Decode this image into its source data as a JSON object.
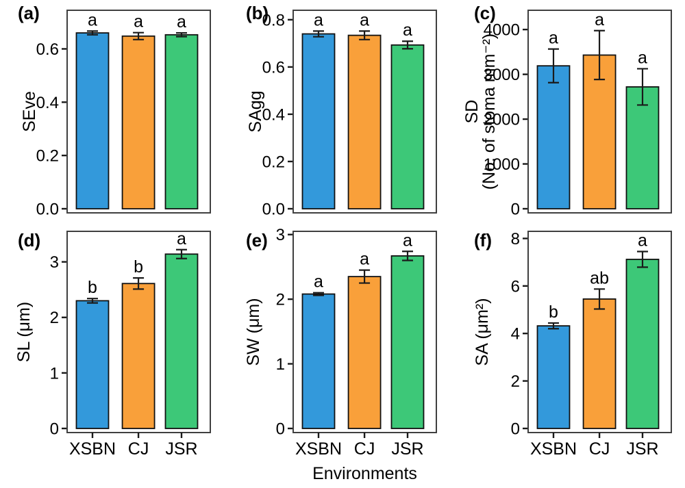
{
  "figure": {
    "background": "#ffffff"
  },
  "palette": {
    "bar_colors": [
      "#3399DB",
      "#F9A03A",
      "#3DC878"
    ],
    "bar_stroke": "#111111",
    "frame": "#3F3F3F",
    "tick": "#1A1A1A",
    "text": "#000000"
  },
  "categories": [
    "XSBN",
    "CJ",
    "JSR"
  ],
  "x_axis_label": "Environments",
  "chart_data": [
    {
      "type": "bar",
      "panel_label": "(a)",
      "ylabel_lines": [
        "SEve"
      ],
      "categories": [
        "XSBN",
        "CJ",
        "JSR"
      ],
      "values": [
        0.66,
        0.648,
        0.653
      ],
      "errors": [
        0.007,
        0.013,
        0.007
      ],
      "sig_letters": [
        "a",
        "a",
        "a"
      ],
      "yticks": [
        0,
        0.2,
        0.4,
        0.6
      ],
      "ytick_labels": [
        "0.0",
        "0.2",
        "0.4",
        "0.6"
      ],
      "ylim": [
        0,
        0.745
      ],
      "show_x_tick_labels": false,
      "grid": false,
      "legend": "none"
    },
    {
      "type": "bar",
      "panel_label": "(b)",
      "ylabel_lines": [
        "SAgg"
      ],
      "categories": [
        "XSBN",
        "CJ",
        "JSR"
      ],
      "values": [
        0.74,
        0.734,
        0.693
      ],
      "errors": [
        0.012,
        0.018,
        0.016
      ],
      "sig_letters": [
        "a",
        "a",
        "a"
      ],
      "yticks": [
        0,
        0.2,
        0.4,
        0.6,
        0.8
      ],
      "ytick_labels": [
        "0.0",
        "0.2",
        "0.4",
        "0.6",
        "0.8"
      ],
      "ylim": [
        0,
        0.84
      ],
      "show_x_tick_labels": false,
      "grid": false,
      "legend": "none"
    },
    {
      "type": "bar",
      "panel_label": "(c)",
      "ylabel_lines": [
        "SD",
        "(No. of stoma mm⁻²)"
      ],
      "categories": [
        "XSBN",
        "CJ",
        "JSR"
      ],
      "values": [
        3190,
        3430,
        2720
      ],
      "errors": [
        375,
        545,
        405
      ],
      "sig_letters": [
        "a",
        "a",
        "a"
      ],
      "yticks": [
        0,
        1000,
        2000,
        3000,
        4000
      ],
      "ytick_labels": [
        "0",
        "1000",
        "2000",
        "3000",
        "4000"
      ],
      "ylim": [
        0,
        4430
      ],
      "show_x_tick_labels": false,
      "grid": false,
      "legend": "none"
    },
    {
      "type": "bar",
      "panel_label": "(d)",
      "ylabel_lines": [
        "SL (μm)"
      ],
      "categories": [
        "XSBN",
        "CJ",
        "JSR"
      ],
      "values": [
        2.3,
        2.61,
        3.14
      ],
      "errors": [
        0.04,
        0.1,
        0.08
      ],
      "sig_letters": [
        "b",
        "b",
        "a"
      ],
      "yticks": [
        0,
        1,
        2,
        3
      ],
      "ytick_labels": [
        "0",
        "1",
        "2",
        "3"
      ],
      "ylim": [
        0,
        3.55
      ],
      "show_x_tick_labels": true,
      "grid": false,
      "legend": "none"
    },
    {
      "type": "bar",
      "panel_label": "(e)",
      "ylabel_lines": [
        "SW (μm)"
      ],
      "categories": [
        "XSBN",
        "CJ",
        "JSR"
      ],
      "values": [
        2.08,
        2.35,
        2.67
      ],
      "errors": [
        0.02,
        0.1,
        0.07
      ],
      "sig_letters": [
        "a",
        "a",
        "a"
      ],
      "yticks": [
        0,
        1,
        2,
        3
      ],
      "ytick_labels": [
        "0",
        "1",
        "2",
        "3"
      ],
      "ylim": [
        0,
        3.05
      ],
      "show_x_tick_labels": true,
      "grid": false,
      "legend": "none"
    },
    {
      "type": "bar",
      "panel_label": "(f)",
      "ylabel_lines": [
        "SA (μm²)"
      ],
      "categories": [
        "XSBN",
        "CJ",
        "JSR"
      ],
      "values": [
        4.32,
        5.45,
        7.12
      ],
      "errors": [
        0.12,
        0.42,
        0.33
      ],
      "sig_letters": [
        "b",
        "ab",
        "a"
      ],
      "yticks": [
        0,
        2,
        4,
        6,
        8
      ],
      "ytick_labels": [
        "0",
        "2",
        "4",
        "6",
        "8"
      ],
      "ylim": [
        0,
        8.3
      ],
      "show_x_tick_labels": true,
      "grid": false,
      "legend": "none"
    }
  ]
}
